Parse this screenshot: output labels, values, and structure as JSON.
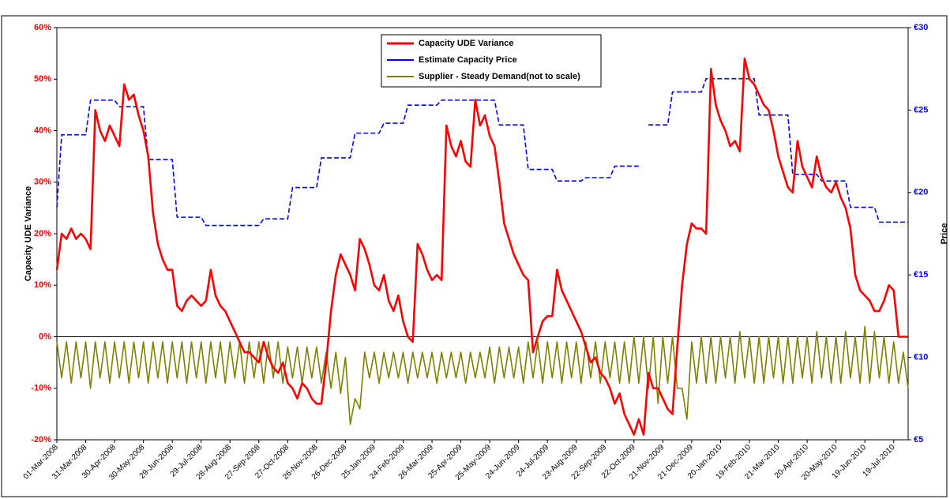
{
  "chart_data": {
    "type": "line",
    "y_label": "Capacity UDE Variance",
    "y2_label": "Price",
    "legend": "top",
    "grid": false,
    "categories": [
      "01-Mar-2008",
      null,
      null,
      null,
      null,
      null,
      "31-Mar-2008",
      null,
      null,
      null,
      null,
      null,
      "30-Apr-2008",
      null,
      null,
      null,
      null,
      null,
      "30-May-2008",
      null,
      null,
      null,
      null,
      null,
      "29-Jun-2008",
      null,
      null,
      null,
      null,
      null,
      "29-Jul-2008",
      null,
      null,
      null,
      null,
      null,
      "28-Aug-2008",
      null,
      null,
      null,
      null,
      null,
      "27-Sep-2008",
      null,
      null,
      null,
      null,
      null,
      "27-Oct-2008",
      null,
      null,
      null,
      null,
      null,
      "26-Nov-2008",
      null,
      null,
      null,
      null,
      null,
      "26-Dec-2008",
      null,
      null,
      null,
      null,
      null,
      "25-Jan-2009",
      null,
      null,
      null,
      null,
      null,
      "24-Feb-2009",
      null,
      null,
      null,
      null,
      null,
      "26-Mar-2009",
      null,
      null,
      null,
      null,
      null,
      "25-Apr-2009",
      null,
      null,
      null,
      null,
      null,
      "25-May-2009",
      null,
      null,
      null,
      null,
      null,
      "24-Jun-2009",
      null,
      null,
      null,
      null,
      null,
      "24-Jul-2009",
      null,
      null,
      null,
      null,
      null,
      "23-Aug-2009",
      null,
      null,
      null,
      null,
      null,
      "22-Sep-2009",
      null,
      null,
      null,
      null,
      null,
      "22-Oct-2009",
      null,
      null,
      null,
      null,
      null,
      "21-Nov-2009",
      null,
      null,
      null,
      null,
      null,
      "21-Dec-2009",
      null,
      null,
      null,
      null,
      null,
      "20-Jan-2010",
      null,
      null,
      null,
      null,
      null,
      "19-Feb-2010",
      null,
      null,
      null,
      null,
      null,
      "21-Mar-2010",
      null,
      null,
      null,
      null,
      null,
      "20-Apr-2010",
      null,
      null,
      null,
      null,
      null,
      "20-May-2010",
      null,
      null,
      null,
      null,
      null,
      "19-Jun-2010",
      null,
      null,
      null,
      null,
      null,
      "19-Jul-2010",
      null,
      null,
      null
    ],
    "series": [
      {
        "name": "Capacity UDE Variance",
        "color": "#ff0000",
        "values": [
          13,
          20,
          19,
          21,
          19,
          20,
          19,
          17,
          44,
          40,
          38,
          41,
          39,
          37,
          49,
          46,
          47,
          43,
          40,
          35,
          24,
          18,
          15,
          13,
          13,
          6,
          5,
          7,
          8,
          7,
          6,
          7,
          13,
          8,
          6,
          5,
          3,
          1,
          -1,
          -3,
          -3,
          -4,
          -5,
          -1,
          -4,
          -6,
          -7,
          -5,
          -9,
          -10,
          -12,
          -9,
          -10,
          -12,
          -13,
          -13,
          -5,
          5,
          12,
          16,
          14,
          12,
          9,
          19,
          17,
          14,
          10,
          9,
          12,
          7,
          5,
          8,
          3,
          0,
          -1,
          18,
          16,
          13,
          11,
          12,
          11,
          41,
          37,
          35,
          38,
          34,
          33,
          46,
          41,
          43,
          39,
          37,
          30,
          22,
          19,
          16,
          14,
          12,
          11,
          -3,
          0,
          3,
          4,
          4,
          13,
          9,
          7,
          5,
          3,
          1,
          -2,
          -5,
          -4,
          -7,
          -8,
          -10,
          -13,
          -11,
          -15,
          -17,
          -19,
          -16,
          -19,
          -7,
          -10,
          -10,
          -12,
          -14,
          -15,
          -2,
          10,
          18,
          22,
          21,
          21,
          20,
          52,
          45,
          42,
          40,
          37,
          38,
          36,
          54,
          50,
          49,
          47,
          45,
          44,
          40,
          35,
          32,
          29,
          28,
          38,
          33,
          31,
          29,
          35,
          31,
          29,
          28,
          30,
          27,
          25,
          21,
          12,
          9,
          8,
          7,
          5,
          5,
          7,
          10,
          9,
          0,
          0,
          0
        ]
      },
      {
        "name": "Estimate Capacity Price",
        "color": "#0000ff",
        "axis": "y2",
        "dashed": true,
        "values": [
          19.1,
          23.5,
          23.5,
          23.5,
          23.5,
          23.5,
          23.5,
          25.6,
          25.6,
          25.6,
          25.6,
          25.6,
          25.6,
          25.2,
          25.2,
          25.2,
          25.2,
          25.2,
          25.2,
          22,
          22,
          22,
          22,
          22,
          22,
          18.5,
          18.5,
          18.5,
          18.5,
          18.5,
          18.5,
          18,
          18,
          18,
          18,
          18,
          18,
          18,
          18,
          18,
          18,
          18,
          18,
          18.4,
          18.4,
          18.4,
          18.4,
          18.4,
          18.4,
          20.3,
          20.3,
          20.3,
          20.3,
          20.3,
          20.3,
          22.1,
          22.1,
          22.1,
          22.1,
          22.1,
          22.1,
          22.1,
          23.6,
          23.6,
          23.6,
          23.6,
          23.6,
          23.6,
          24.2,
          24.2,
          24.2,
          24.2,
          24.2,
          25.3,
          25.3,
          25.3,
          25.3,
          25.3,
          25.3,
          25.3,
          25.6,
          25.6,
          25.6,
          25.6,
          25.6,
          25.6,
          25.6,
          25.6,
          25.6,
          25.6,
          25.6,
          25.6,
          24.1,
          24.1,
          24.1,
          24.1,
          24.1,
          24.1,
          21.4,
          21.4,
          21.4,
          21.4,
          21.4,
          21.4,
          20.7,
          20.7,
          20.7,
          20.7,
          20.7,
          20.7,
          20.9,
          20.9,
          20.9,
          20.9,
          20.9,
          20.9,
          21.6,
          21.6,
          21.6,
          21.6,
          21.6,
          21.6,
          null,
          24.1,
          24.1,
          24.1,
          24.1,
          24.1,
          26.1,
          26.1,
          26.1,
          26.1,
          26.1,
          26.1,
          26.1,
          26.9,
          26.9,
          26.9,
          26.9,
          26.9,
          26.9,
          26.9,
          26.9,
          26.9,
          26.9,
          26.9,
          24.7,
          24.7,
          24.7,
          24.7,
          24.7,
          24.7,
          24.7,
          21.1,
          21.1,
          21.1,
          21.1,
          21.1,
          21.1,
          20.7,
          20.7,
          20.7,
          20.7,
          20.7,
          20.7,
          19.1,
          19.1,
          19.1,
          19.1,
          19.1,
          19.1,
          18.2,
          18.2,
          18.2,
          18.2,
          18.2,
          18.2,
          18.2
        ]
      },
      {
        "name": "Supplier - Steady Demand(not to scale)",
        "color": "#808000",
        "values": [
          -1,
          -8,
          -1,
          -9,
          -1,
          -8,
          -1,
          -10,
          -1,
          -8,
          -1,
          -9,
          -1,
          -8,
          -1,
          -9,
          -1,
          -8,
          -1,
          -9,
          -1,
          -8,
          -1,
          -9,
          -1,
          -8,
          -1,
          -9,
          -1,
          -8,
          -1,
          -9,
          -1,
          -8,
          -1,
          -9,
          -1,
          -8,
          -1,
          -9,
          -1,
          -8,
          -1,
          -9,
          -1,
          -8,
          -1,
          -9,
          -2,
          -8,
          -2,
          -9,
          -2,
          -8,
          -2,
          -9,
          -3,
          -10,
          -3,
          -11,
          -4,
          -17,
          -12,
          -14,
          -3,
          -8,
          -3,
          -9,
          -3,
          -8,
          -3,
          -8,
          -3,
          -9,
          -3,
          -8,
          -3,
          -8,
          -3,
          -9,
          -3,
          -8,
          -3,
          -8,
          -3,
          -9,
          -3,
          -8,
          -3,
          -8,
          -2,
          -9,
          -2,
          -8,
          -2,
          -8,
          -2,
          -9,
          -1,
          -8,
          -1,
          -9,
          -1,
          -8,
          -1,
          -9,
          -1,
          -8,
          -1,
          -9,
          -1,
          -8,
          -1,
          -9,
          -1,
          -8,
          -1,
          -9,
          -1,
          -9,
          0,
          -9,
          0,
          -10,
          0,
          -13,
          0,
          -9,
          0,
          -10,
          -10,
          -16,
          -1,
          -9,
          0,
          -9,
          0,
          -9,
          0,
          -8,
          0,
          -9,
          1,
          -8,
          0,
          -9,
          0,
          -9,
          0,
          -8,
          0,
          -9,
          0,
          -9,
          0,
          -8,
          0,
          -9,
          1,
          -8,
          0,
          -9,
          0,
          -9,
          1,
          -8,
          0,
          -9,
          2,
          -9,
          1,
          -8,
          0,
          -9,
          -1,
          -9,
          -3,
          -10
        ]
      }
    ],
    "ylim": [
      -20,
      60
    ],
    "yticks": [
      {
        "value": -20,
        "label": "-20%"
      },
      {
        "value": -10,
        "label": "-10%"
      },
      {
        "value": 0,
        "label": "0%"
      },
      {
        "value": 10,
        "label": "10%"
      },
      {
        "value": 20,
        "label": "20%"
      },
      {
        "value": 30,
        "label": "30%"
      },
      {
        "value": 40,
        "label": "40%"
      },
      {
        "value": 50,
        "label": "50%"
      },
      {
        "value": 60,
        "label": "60%"
      }
    ],
    "y2lim": [
      5,
      30
    ],
    "y2ticks": [
      {
        "value": 5,
        "label": "€5"
      },
      {
        "value": 10,
        "label": "€10"
      },
      {
        "value": 15,
        "label": "€15"
      },
      {
        "value": 20,
        "label": "€20"
      },
      {
        "value": 25,
        "label": "€25"
      },
      {
        "value": 30,
        "label": "€30"
      }
    ]
  }
}
